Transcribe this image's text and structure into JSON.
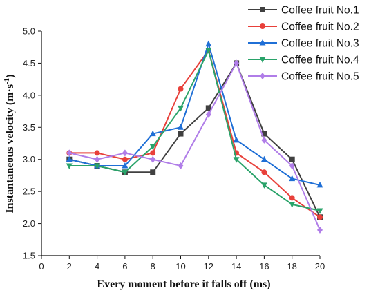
{
  "chart_data": {
    "type": "line",
    "xlabel": "Every moment before it falls off (ms)",
    "ylabel": "Instantaneous velocity (m·s",
    "ylabel_sup": "-1",
    "ylabel_close": ")",
    "xlim": [
      0,
      20
    ],
    "ylim": [
      1.5,
      5.0
    ],
    "x_ticks": [
      0,
      2,
      4,
      6,
      8,
      10,
      12,
      14,
      16,
      18,
      20
    ],
    "y_ticks": [
      1.5,
      2.0,
      2.5,
      3.0,
      3.5,
      4.0,
      4.5,
      5.0
    ],
    "x_tick_labels": [
      "0",
      "2",
      "4",
      "6",
      "8",
      "10",
      "12",
      "14",
      "16",
      "18",
      "20"
    ],
    "y_tick_labels": [
      "1.5",
      "2.0",
      "2.5",
      "3.0",
      "3.5",
      "4.0",
      "4.5",
      "5.0"
    ],
    "grid": false,
    "legend_position": "top-right, outside plot",
    "x": [
      2,
      4,
      6,
      8,
      10,
      12,
      14,
      16,
      18,
      20
    ],
    "series": [
      {
        "name": "Coffee fruit No.1",
        "color": "#404040",
        "marker": "square",
        "values": [
          3.0,
          2.9,
          2.8,
          2.8,
          3.4,
          3.8,
          4.5,
          3.4,
          3.0,
          2.1
        ]
      },
      {
        "name": "Coffee fruit No.2",
        "color": "#e8403a",
        "marker": "circle",
        "values": [
          3.1,
          3.1,
          3.0,
          3.1,
          4.1,
          4.7,
          3.1,
          2.8,
          2.4,
          2.1
        ]
      },
      {
        "name": "Coffee fruit No.3",
        "color": "#1f6fd6",
        "marker": "triangle-up",
        "values": [
          3.0,
          2.9,
          2.9,
          3.4,
          3.5,
          4.8,
          3.3,
          3.0,
          2.7,
          2.6
        ]
      },
      {
        "name": "Coffee fruit No.4",
        "color": "#2aa36a",
        "marker": "triangle-down",
        "values": [
          2.9,
          2.9,
          2.8,
          3.2,
          3.8,
          4.7,
          3.0,
          2.6,
          2.3,
          2.2
        ]
      },
      {
        "name": "Coffee fruit No.5",
        "color": "#b07de8",
        "marker": "diamond",
        "values": [
          3.1,
          3.0,
          3.1,
          3.0,
          2.9,
          3.7,
          4.5,
          3.3,
          2.9,
          1.9
        ]
      }
    ]
  }
}
